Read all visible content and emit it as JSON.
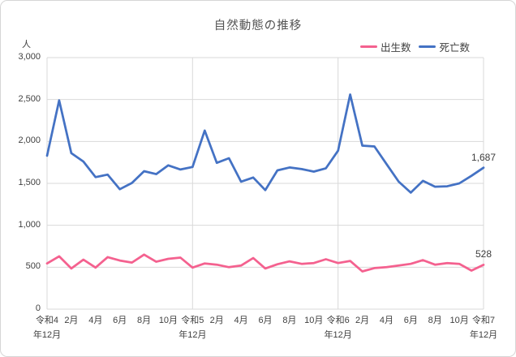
{
  "title": "自然動態の推移",
  "y_axis_unit": "人",
  "chart_data": {
    "type": "line",
    "title": "自然動態の推移",
    "ylabel": "人",
    "ylim": [
      0,
      3000
    ],
    "y_tick_step": 500,
    "y_ticks": [
      "3,000",
      "2,500",
      "2,000",
      "1,500",
      "1,000",
      "500",
      "0"
    ],
    "n_points": 37,
    "x_ticks": [
      {
        "i": 0,
        "l1": "令和4",
        "l2": "年12月"
      },
      {
        "i": 2,
        "l1": "2月",
        "l2": ""
      },
      {
        "i": 4,
        "l1": "4月",
        "l2": ""
      },
      {
        "i": 6,
        "l1": "6月",
        "l2": ""
      },
      {
        "i": 8,
        "l1": "8月",
        "l2": ""
      },
      {
        "i": 10,
        "l1": "10月",
        "l2": ""
      },
      {
        "i": 12,
        "l1": "令和5",
        "l2": "年12月"
      },
      {
        "i": 14,
        "l1": "2月",
        "l2": ""
      },
      {
        "i": 16,
        "l1": "4月",
        "l2": ""
      },
      {
        "i": 18,
        "l1": "6月",
        "l2": ""
      },
      {
        "i": 20,
        "l1": "8月",
        "l2": ""
      },
      {
        "i": 22,
        "l1": "10月",
        "l2": ""
      },
      {
        "i": 24,
        "l1": "令和6",
        "l2": "年12月"
      },
      {
        "i": 26,
        "l1": "2月",
        "l2": ""
      },
      {
        "i": 28,
        "l1": "4月",
        "l2": ""
      },
      {
        "i": 30,
        "l1": "6月",
        "l2": ""
      },
      {
        "i": 32,
        "l1": "8月",
        "l2": ""
      },
      {
        "i": 34,
        "l1": "10月",
        "l2": ""
      },
      {
        "i": 36,
        "l1": "令和7",
        "l2": "年12月"
      }
    ],
    "year_separator_tick_indices": [
      12,
      24
    ],
    "grid": true,
    "legend_position": "top-right",
    "grid_color": "#d9d9d9",
    "series": [
      {
        "name": "出生数",
        "color": "#f4618f",
        "end_label": "528",
        "values": [
          545,
          630,
          485,
          590,
          495,
          620,
          580,
          555,
          650,
          565,
          600,
          615,
          495,
          545,
          530,
          500,
          520,
          610,
          485,
          535,
          570,
          540,
          550,
          595,
          550,
          575,
          450,
          490,
          500,
          520,
          540,
          585,
          530,
          550,
          540,
          460,
          528
        ]
      },
      {
        "name": "死亡数",
        "color": "#4472c4",
        "end_label": "1,687",
        "values": [
          1830,
          2490,
          1860,
          1760,
          1575,
          1605,
          1430,
          1505,
          1645,
          1610,
          1715,
          1665,
          1695,
          2130,
          1745,
          1800,
          1520,
          1570,
          1420,
          1655,
          1690,
          1670,
          1640,
          1680,
          1890,
          2560,
          1950,
          1940,
          1730,
          1520,
          1390,
          1530,
          1460,
          1465,
          1500,
          1590,
          1687
        ]
      }
    ]
  }
}
